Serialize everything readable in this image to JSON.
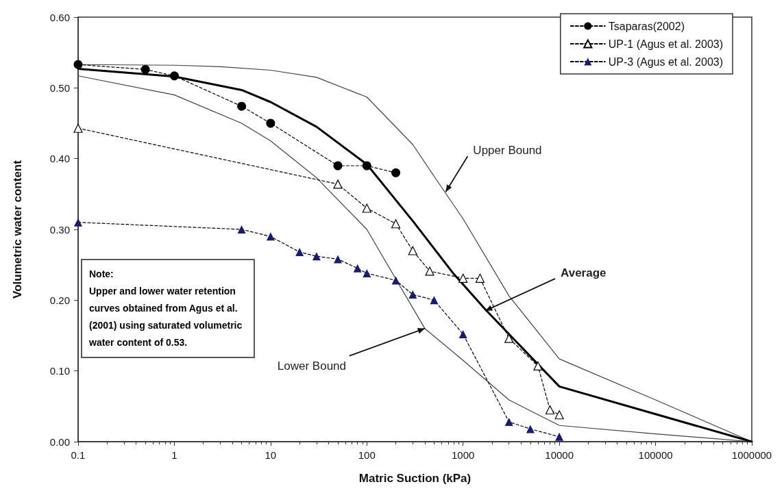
{
  "chart_data": {
    "type": "line",
    "xlabel": "Matric Suction (kPa)",
    "ylabel": "Volumetric water content",
    "log": "x",
    "xlim": [
      0.1,
      1000000
    ],
    "xticks": [
      0.1,
      1,
      10,
      100,
      1000,
      10000,
      100000,
      1000000
    ],
    "ylim": [
      0,
      0.6
    ],
    "yticks": [
      {
        "value": 0,
        "label": "0.00"
      },
      {
        "value": 0.1,
        "label": "0.10"
      },
      {
        "value": 0.2,
        "label": "0.20"
      },
      {
        "value": 0.3,
        "label": "0.30"
      },
      {
        "value": 0.4,
        "label": "0.40"
      },
      {
        "value": 0.5,
        "label": "0.50"
      },
      {
        "value": 0.6,
        "label": "0.60"
      }
    ],
    "grid": false,
    "legend": "top right",
    "series": [
      {
        "name": "Tsaparas(2002)",
        "color": "#000000",
        "marker": "circle",
        "line_style": "dashed",
        "x": [
          0.1,
          0.5,
          1,
          5,
          10,
          50,
          100,
          200
        ],
        "values": [
          0.533,
          0.526,
          0.517,
          0.474,
          0.45,
          0.39,
          0.39,
          0.38
        ]
      },
      {
        "name": "UP-1 (Agus et al. 2003)",
        "color": "#ffffff",
        "marker": "triangle",
        "line_style": "dashed",
        "x": [
          0.1,
          50,
          100,
          200,
          300,
          450,
          1000,
          1500,
          3000,
          6000,
          8000,
          10000
        ],
        "values": [
          0.443,
          0.364,
          0.33,
          0.308,
          0.27,
          0.241,
          0.231,
          0.231,
          0.146,
          0.107,
          0.045,
          0.038
        ]
      },
      {
        "name": "UP-3 (Agus et al. 2003)",
        "color": "#1a1a6e",
        "marker": "triangle",
        "line_style": "dashed",
        "x": [
          0.1,
          5,
          10,
          20,
          30,
          50,
          80,
          100,
          200,
          300,
          500,
          1000,
          3000,
          5000,
          10000
        ],
        "values": [
          0.31,
          0.3,
          0.29,
          0.268,
          0.262,
          0.258,
          0.245,
          0.238,
          0.228,
          0.208,
          0.2,
          0.152,
          0.028,
          0.018,
          0.007
        ]
      },
      {
        "color": "#404040",
        "marker": "none",
        "line_style": "solid",
        "x": [
          0.1,
          1,
          3,
          10,
          30,
          100,
          300,
          500,
          1000,
          3000,
          10000,
          100000,
          1000000
        ],
        "values": [
          0.533,
          0.532,
          0.53,
          0.525,
          0.515,
          0.487,
          0.42,
          0.375,
          0.315,
          0.206,
          0.117,
          0.059,
          0
        ]
      },
      {
        "color": "#404040",
        "marker": "none",
        "line_style": "solid",
        "x": [
          0.1,
          1,
          5,
          10,
          30,
          100,
          400,
          1000,
          3000,
          10000,
          100000,
          1000000
        ],
        "values": [
          0.517,
          0.49,
          0.45,
          0.425,
          0.373,
          0.3,
          0.16,
          0.115,
          0.059,
          0.023,
          0.011,
          0
        ]
      },
      {
        "color": "#000000",
        "marker": "none",
        "line_style": "solid",
        "x": [
          0.1,
          1,
          5,
          10,
          30,
          100,
          300,
          800,
          1700,
          10000,
          100000,
          1000000
        ],
        "values": [
          0.527,
          0.516,
          0.497,
          0.48,
          0.445,
          0.392,
          0.312,
          0.237,
          0.187,
          0.078,
          0.039,
          0
        ]
      }
    ],
    "annotations": [
      {
        "text": "Upper Bound",
        "x": 660,
        "y": 0.353
      },
      {
        "text": "Average",
        "x": 1700,
        "y": 0.185
      },
      {
        "text": "Lower Bound",
        "x": 400,
        "y": 0.16
      },
      "Note:\nUpper and lower water retention curves obtained from Agus et al. (2001) using saturated volumetric water content of 0.53."
    ]
  }
}
